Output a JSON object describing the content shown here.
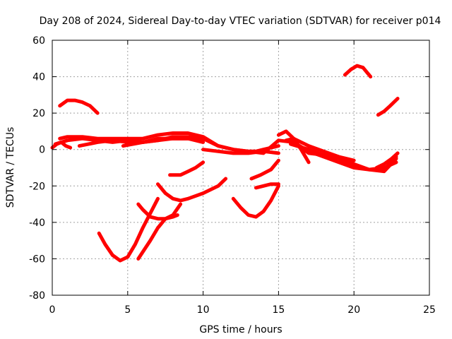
{
  "chart_data": {
    "type": "line",
    "title": "Day 208 of 2024, Sidereal Day-to-day VTEC variation (SDTVAR) for receiver p014",
    "xlabel": "GPS time / hours",
    "ylabel": "SDTVAR / TECUs",
    "xlim": [
      0,
      25
    ],
    "ylim": [
      -80,
      60
    ],
    "xticks": [
      0,
      5,
      10,
      15,
      20,
      25
    ],
    "yticks": [
      -80,
      -60,
      -40,
      -20,
      0,
      20,
      40,
      60
    ],
    "grid": true,
    "color": "#ff0000",
    "series": [
      {
        "x": [
          0.0,
          0.3,
          0.6,
          0.9,
          1.2
        ],
        "y": [
          1,
          3,
          4,
          2,
          1
        ]
      },
      {
        "x": [
          0.5,
          1.0,
          1.5,
          2.0,
          2.5,
          3.0
        ],
        "y": [
          24,
          27,
          27,
          26,
          24,
          20
        ]
      },
      {
        "x": [
          0.5,
          1.0,
          2.0,
          3.0,
          4.0,
          5.0,
          6.0,
          7.0,
          8.0,
          9.0,
          10.0,
          11.0,
          12.0,
          13.0,
          13.5,
          14.0,
          15.0
        ],
        "y": [
          6,
          7,
          7,
          6,
          6,
          6,
          6,
          8,
          9,
          9,
          7,
          2,
          0,
          -1,
          -1,
          0,
          2
        ]
      },
      {
        "x": [
          0.2,
          1.0,
          2.0,
          3.0,
          4.0,
          5.0,
          6.0,
          7.0,
          8.0,
          9.0,
          10.0
        ],
        "y": [
          3,
          5,
          6,
          5,
          4,
          5,
          4,
          5,
          6,
          6,
          5
        ]
      },
      {
        "x": [
          1.8,
          3.0,
          4.0,
          5.0,
          6.0,
          7.0,
          8.0,
          9.0,
          10.0
        ],
        "y": [
          2,
          4,
          5,
          4,
          4,
          6,
          6,
          6,
          4
        ]
      },
      {
        "x": [
          4.7,
          6.0,
          7.0,
          8.0,
          9.0,
          10.0,
          11.0,
          12.0,
          13.0,
          14.0,
          15.0,
          16.0,
          17.0,
          18.0,
          19.0,
          20.0,
          21.0,
          22.0,
          22.8
        ],
        "y": [
          2,
          4,
          5,
          7,
          7,
          6,
          2,
          0,
          -1,
          -2,
          5,
          4,
          -1,
          -4,
          -7,
          -10,
          -11,
          -10,
          -7
        ]
      },
      {
        "x": [
          10.0,
          11.0,
          12.0,
          13.0,
          14.0,
          15.0
        ],
        "y": [
          0,
          -1,
          -2,
          -2,
          -1,
          -2
        ]
      },
      {
        "x": [
          3.1,
          3.5,
          4.0,
          4.5,
          5.0,
          5.5,
          6.0,
          6.5,
          7.0
        ],
        "y": [
          -46,
          -52,
          -58,
          -61,
          -59,
          -52,
          -43,
          -35,
          -27
        ]
      },
      {
        "x": [
          5.7,
          6.5,
          7.0,
          7.5,
          8.0,
          8.5
        ],
        "y": [
          -60,
          -50,
          -43,
          -38,
          -36,
          -30
        ]
      },
      {
        "x": [
          5.7,
          6.0,
          6.5,
          7.0,
          7.5,
          8.0,
          8.3
        ],
        "y": [
          -30,
          -33,
          -37,
          -38,
          -38,
          -37,
          -36
        ]
      },
      {
        "x": [
          7.0,
          7.5,
          8.0,
          8.5,
          9.0,
          10.0,
          11.0,
          11.5
        ],
        "y": [
          -19,
          -24,
          -27,
          -28,
          -27,
          -24,
          -20,
          -16
        ]
      },
      {
        "x": [
          7.8,
          8.5,
          9.0,
          9.5,
          10.0
        ],
        "y": [
          -14,
          -14,
          -12,
          -10,
          -7
        ]
      },
      {
        "x": [
          12.0,
          12.5,
          13.0,
          13.5,
          14.0,
          14.5,
          15.0
        ],
        "y": [
          -27,
          -32,
          -36,
          -37,
          -34,
          -28,
          -20
        ]
      },
      {
        "x": [
          13.2,
          13.8,
          14.5,
          15.0
        ],
        "y": [
          -16,
          -14,
          -11,
          -6
        ]
      },
      {
        "x": [
          13.5,
          14.0,
          14.5,
          15.0
        ],
        "y": [
          -21,
          -20,
          -19,
          -19
        ]
      },
      {
        "x": [
          15.0,
          15.5,
          16.0,
          16.5,
          17.0
        ],
        "y": [
          8,
          10,
          6,
          0,
          -7
        ]
      },
      {
        "x": [
          15.5,
          16.0,
          17.0,
          18.0,
          19.0,
          20.0,
          21.0,
          22.0,
          22.8
        ],
        "y": [
          5,
          6,
          2,
          -1,
          -4,
          -8,
          -11,
          -12,
          -5
        ]
      },
      {
        "x": [
          16.5,
          17.0,
          18.0,
          19.0,
          20.0
        ],
        "y": [
          1,
          -2,
          -3,
          -4,
          -6
        ]
      },
      {
        "x": [
          15.8,
          17.0,
          18.0,
          19.0,
          20.0,
          21.0,
          22.0,
          22.8
        ],
        "y": [
          3,
          0,
          -3,
          -5,
          -9,
          -11,
          -11,
          -4
        ]
      },
      {
        "x": [
          19.4,
          19.8,
          20.2,
          20.6,
          21.1
        ],
        "y": [
          41,
          44,
          46,
          45,
          40
        ]
      },
      {
        "x": [
          21.6,
          22.0,
          22.4,
          22.9
        ],
        "y": [
          19,
          21,
          24,
          28
        ]
      },
      {
        "x": [
          21.5,
          22.0,
          22.5,
          22.9
        ],
        "y": [
          -10,
          -8,
          -5,
          -2
        ]
      }
    ]
  }
}
